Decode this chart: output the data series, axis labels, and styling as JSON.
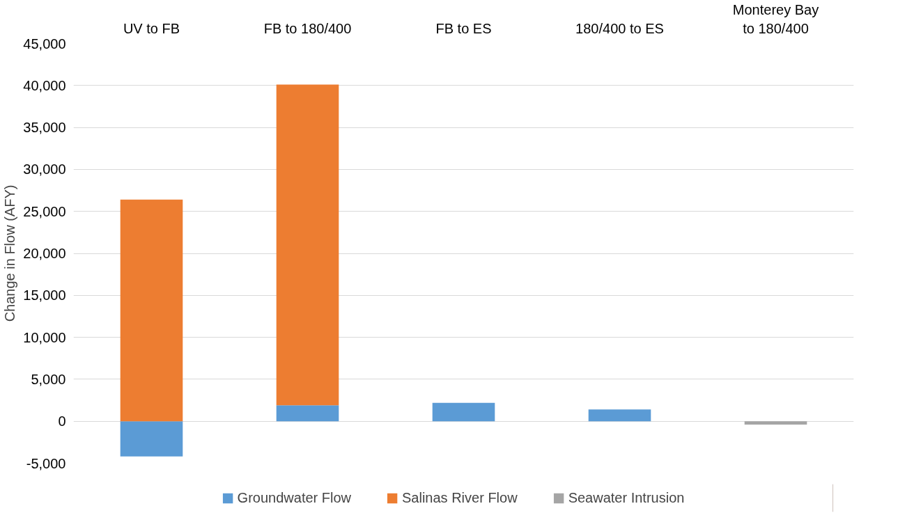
{
  "chart_data": {
    "type": "bar",
    "stacked": true,
    "ylabel": "Change in Flow (AFY)",
    "categories": [
      "UV to FB",
      "FB to 180/400",
      "FB to ES",
      "180/400 to ES",
      "Monterey Bay to 180/400"
    ],
    "series": [
      {
        "name": "Groundwater Flow",
        "color": "#5b9bd5",
        "values": [
          -4200,
          1900,
          2200,
          1400,
          null
        ]
      },
      {
        "name": "Salinas River Flow",
        "color": "#ed7d31",
        "values": [
          26400,
          38200,
          null,
          null,
          null
        ]
      },
      {
        "name": "Seawater Intrusion",
        "color": "#a5a5a5",
        "values": [
          null,
          null,
          null,
          null,
          -400
        ]
      }
    ],
    "ylim": [
      -5000,
      45000
    ],
    "yticks": [
      {
        "value": -5000,
        "label": "-5,000"
      },
      {
        "value": 0,
        "label": "0"
      },
      {
        "value": 5000,
        "label": "5,000"
      },
      {
        "value": 10000,
        "label": "10,000"
      },
      {
        "value": 15000,
        "label": "15,000"
      },
      {
        "value": 20000,
        "label": "20,000"
      },
      {
        "value": 25000,
        "label": "25,000"
      },
      {
        "value": 30000,
        "label": "30,000"
      },
      {
        "value": 35000,
        "label": "35,000"
      },
      {
        "value": 40000,
        "label": "40,000"
      },
      {
        "value": 45000,
        "label": "45,000"
      }
    ],
    "grid": "y",
    "legend": "bottom"
  }
}
